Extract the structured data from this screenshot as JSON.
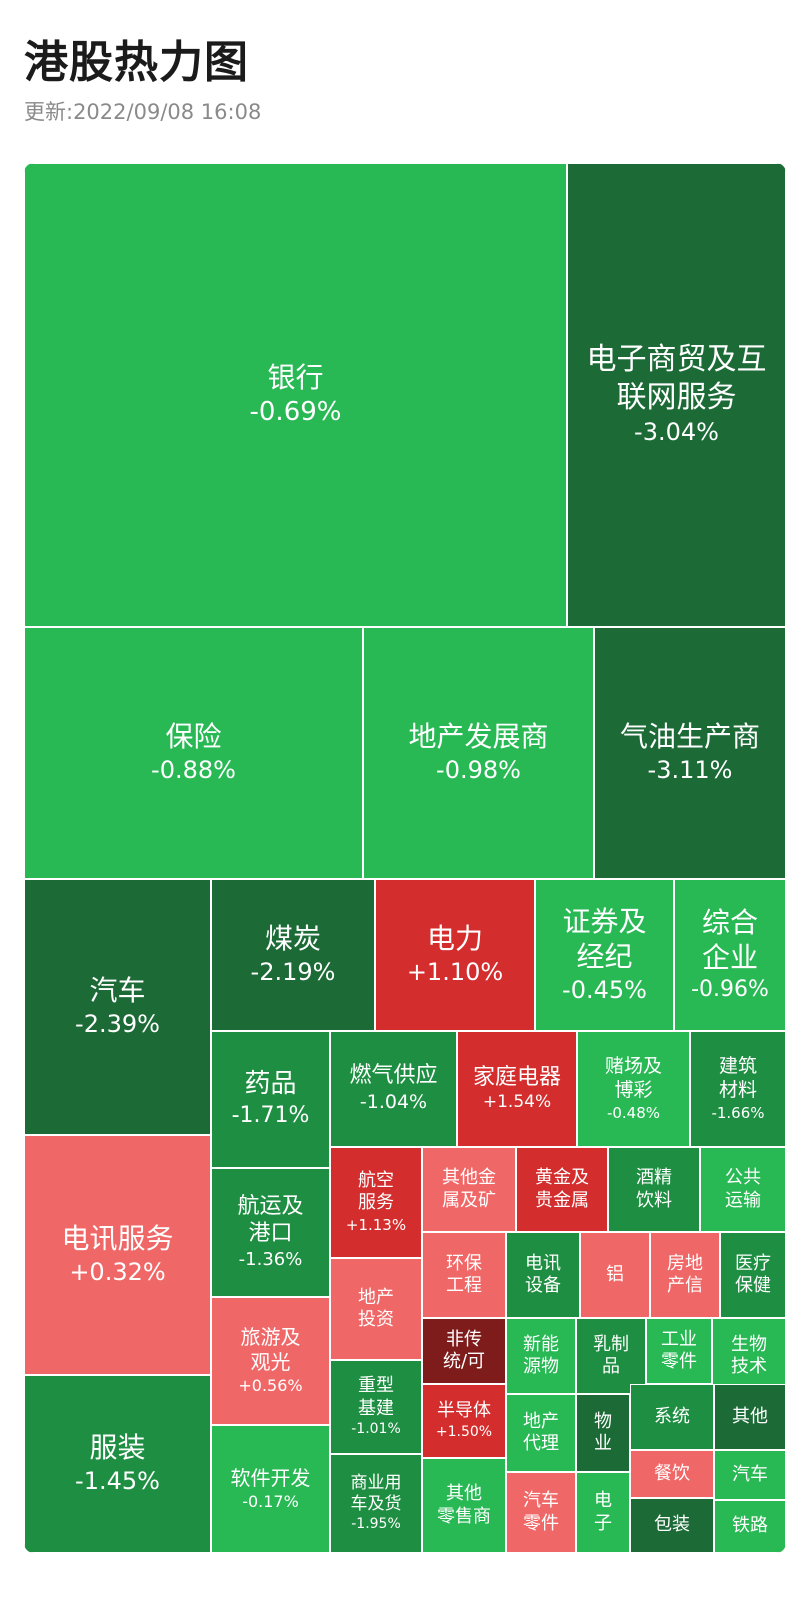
{
  "header": {
    "title": "港股热力图",
    "updated": "更新:2022/09/08 16:08"
  },
  "colors": {
    "up_strong": "#7e1c1c",
    "up_mid": "#d42d2d",
    "up_light": "#f06767",
    "down_light": "#28b955",
    "down_mid": "#1e8f42",
    "down_strong": "#1c6b37"
  },
  "chart_data": {
    "type": "heatmap",
    "title": "港股热力图",
    "tiles": [
      {
        "name": "银行",
        "change": "-0.69%",
        "value": -0.69
      },
      {
        "name": "电子商贸及互联网服务",
        "change": "-3.04%",
        "value": -3.04
      },
      {
        "name": "保险",
        "change": "-0.88%",
        "value": -0.88
      },
      {
        "name": "地产发展商",
        "change": "-0.98%",
        "value": -0.98
      },
      {
        "name": "气油生产商",
        "change": "-3.11%",
        "value": -3.11
      },
      {
        "name": "汽车",
        "change": "-2.39%",
        "value": -2.39
      },
      {
        "name": "煤炭",
        "change": "-2.19%",
        "value": -2.19
      },
      {
        "name": "电力",
        "change": "+1.10%",
        "value": 1.1
      },
      {
        "name": "证券及经纪",
        "change": "-0.45%",
        "value": -0.45
      },
      {
        "name": "综合企业",
        "change": "-0.96%",
        "value": -0.96
      },
      {
        "name": "药品",
        "change": "-1.71%",
        "value": -1.71
      },
      {
        "name": "燃气供应",
        "change": "-1.04%",
        "value": -1.04
      },
      {
        "name": "家庭电器",
        "change": "+1.54%",
        "value": 1.54
      },
      {
        "name": "赌场及博彩",
        "change": "-0.48%",
        "value": -0.48
      },
      {
        "name": "建筑材料",
        "change": "-1.66%",
        "value": -1.66
      },
      {
        "name": "电讯服务",
        "change": "+0.32%",
        "value": 0.32
      },
      {
        "name": "航运及港口",
        "change": "-1.36%",
        "value": -1.36
      },
      {
        "name": "航空服务",
        "change": "+1.13%",
        "value": 1.13
      },
      {
        "name": "其他金属及矿",
        "change": "",
        "value": 0.6
      },
      {
        "name": "黄金及贵金属",
        "change": "",
        "value": 1.2
      },
      {
        "name": "酒精饮料",
        "change": "",
        "value": -1.5
      },
      {
        "name": "公共运输",
        "change": "",
        "value": -0.5
      },
      {
        "name": "地产投资",
        "change": "",
        "value": 0.6
      },
      {
        "name": "环保工程",
        "change": "",
        "value": 0.6
      },
      {
        "name": "电讯设备",
        "change": "",
        "value": -1.5
      },
      {
        "name": "铝",
        "change": "",
        "value": 0.6
      },
      {
        "name": "房地产信",
        "change": "",
        "value": 0.6
      },
      {
        "name": "医疗保健",
        "change": "",
        "value": -1.5
      },
      {
        "name": "旅游及观光",
        "change": "+0.56%",
        "value": 0.56
      },
      {
        "name": "非传统/可",
        "change": "",
        "value": 3.0
      },
      {
        "name": "新能源物",
        "change": "",
        "value": -0.5
      },
      {
        "name": "乳制品",
        "change": "",
        "value": -1.5
      },
      {
        "name": "工业零件",
        "change": "",
        "value": -0.5
      },
      {
        "name": "生物技术",
        "change": "",
        "value": -0.5
      },
      {
        "name": "重型基建",
        "change": "-1.01%",
        "value": -1.01
      },
      {
        "name": "半导体",
        "change": "+1.50%",
        "value": 1.5
      },
      {
        "name": "地产代理",
        "change": "",
        "value": -0.5
      },
      {
        "name": "物业",
        "change": "",
        "value": -3.0
      },
      {
        "name": "系统",
        "change": "",
        "value": -1.5
      },
      {
        "name": "其他",
        "change": "",
        "value": -3.0
      },
      {
        "name": "服装",
        "change": "-1.45%",
        "value": -1.45
      },
      {
        "name": "软件开发",
        "change": "-0.17%",
        "value": -0.17
      },
      {
        "name": "商业用车及货",
        "change": "-1.95%",
        "value": -1.95
      },
      {
        "name": "其他零售商",
        "change": "",
        "value": -0.5
      },
      {
        "name": "汽车零件",
        "change": "",
        "value": 0.6
      },
      {
        "name": "电子",
        "change": "",
        "value": -0.5
      },
      {
        "name": "餐饮",
        "change": "",
        "value": 0.6
      },
      {
        "name": "汽车",
        "change": "",
        "value": -0.5
      },
      {
        "name": "包装",
        "change": "",
        "value": -3.0
      },
      {
        "name": "铁路",
        "change": "",
        "value": -0.5
      }
    ]
  }
}
